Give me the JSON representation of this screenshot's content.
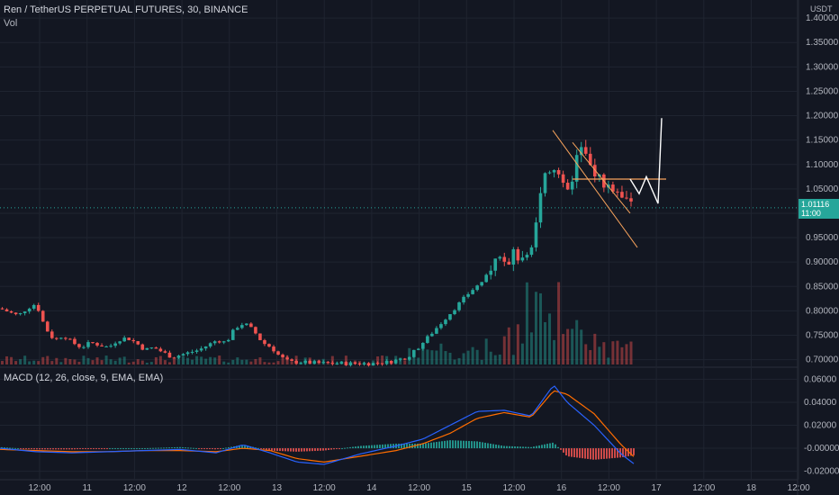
{
  "header": {
    "symbol_title": "Ren / TetherUS PERPETUAL FUTURES, 30, BINANCE",
    "volume_label": "Vol",
    "currency": "USDT"
  },
  "macd": {
    "label": "MACD (12, 26, close, 9, EMA, EMA)"
  },
  "last_price": {
    "value": "1.01116",
    "countdown": "11:00"
  },
  "colors": {
    "background": "#131722",
    "grid": "#1f2430",
    "up": "#26a69a",
    "down": "#ef5350",
    "macd_line": "#2962ff",
    "signal_line": "#ff6d00",
    "trendline": "#f7a35c",
    "projection": "#ffffff",
    "price_tag": "#26a69a"
  },
  "chart_data": [
    {
      "type": "candlestick",
      "title": "Ren / TetherUS PERPETUAL FUTURES, 30, BINANCE",
      "y_axis_ticks": [
        "1.40000",
        "1.35000",
        "1.30000",
        "1.25000",
        "1.20000",
        "1.15000",
        "1.10000",
        "1.05000",
        "1.00000",
        "0.95000",
        "0.90000",
        "0.85000",
        "0.80000",
        "0.75000",
        "0.70000"
      ],
      "ylim": [
        0.69,
        1.415
      ],
      "x_axis_ticks": [
        "12:00",
        "11",
        "12:00",
        "12",
        "12:00",
        "13",
        "12:00",
        "14",
        "12:00",
        "15",
        "12:00",
        "16",
        "12:00",
        "17",
        "12:00",
        "18",
        "12:00"
      ],
      "close_path": [
        {
          "t": 0,
          "v": 0.805
        },
        {
          "t": 2,
          "v": 0.79
        },
        {
          "t": 3,
          "v": 0.805
        },
        {
          "t": 4,
          "v": 0.815
        },
        {
          "t": 5,
          "v": 0.765
        },
        {
          "t": 6,
          "v": 0.74
        },
        {
          "t": 7,
          "v": 0.75
        },
        {
          "t": 8,
          "v": 0.735
        },
        {
          "t": 9,
          "v": 0.725
        },
        {
          "t": 10,
          "v": 0.735
        },
        {
          "t": 11,
          "v": 0.73
        },
        {
          "t": 12,
          "v": 0.725
        },
        {
          "t": 13,
          "v": 0.74
        },
        {
          "t": 14,
          "v": 0.745
        },
        {
          "t": 15,
          "v": 0.735
        },
        {
          "t": 16,
          "v": 0.72
        },
        {
          "t": 17,
          "v": 0.725
        },
        {
          "t": 18,
          "v": 0.715
        },
        {
          "t": 19,
          "v": 0.705
        },
        {
          "t": 20,
          "v": 0.71
        },
        {
          "t": 21,
          "v": 0.715
        },
        {
          "t": 22,
          "v": 0.72
        },
        {
          "t": 23,
          "v": 0.73
        },
        {
          "t": 24,
          "v": 0.74
        },
        {
          "t": 25,
          "v": 0.735
        },
        {
          "t": 26,
          "v": 0.765
        },
        {
          "t": 27,
          "v": 0.775
        },
        {
          "t": 28,
          "v": 0.76
        },
        {
          "t": 29,
          "v": 0.735
        },
        {
          "t": 30,
          "v": 0.725
        },
        {
          "t": 31,
          "v": 0.705
        },
        {
          "t": 32,
          "v": 0.695
        },
        {
          "t": 33,
          "v": 0.695
        },
        {
          "t": 35,
          "v": 0.693
        },
        {
          "t": 38,
          "v": 0.692
        },
        {
          "t": 41,
          "v": 0.692
        },
        {
          "t": 43,
          "v": 0.695
        },
        {
          "t": 44,
          "v": 0.7
        },
        {
          "t": 45,
          "v": 0.705
        },
        {
          "t": 46,
          "v": 0.72
        },
        {
          "t": 47,
          "v": 0.74
        },
        {
          "t": 48,
          "v": 0.76
        },
        {
          "t": 49,
          "v": 0.78
        },
        {
          "t": 50,
          "v": 0.8
        },
        {
          "t": 51,
          "v": 0.82
        },
        {
          "t": 52,
          "v": 0.84
        },
        {
          "t": 53,
          "v": 0.855
        },
        {
          "t": 54,
          "v": 0.875
        },
        {
          "t": 55,
          "v": 0.93
        },
        {
          "t": 56,
          "v": 0.9
        },
        {
          "t": 57,
          "v": 0.92
        },
        {
          "t": 58,
          "v": 0.89
        },
        {
          "t": 59,
          "v": 0.96
        },
        {
          "t": 60,
          "v": 1.06
        },
        {
          "t": 61,
          "v": 1.1
        },
        {
          "t": 62,
          "v": 1.07
        },
        {
          "t": 63,
          "v": 1.05
        },
        {
          "t": 64,
          "v": 1.14
        },
        {
          "t": 65,
          "v": 1.1
        },
        {
          "t": 66,
          "v": 1.08
        },
        {
          "t": 67,
          "v": 1.06
        },
        {
          "t": 68,
          "v": 1.05
        },
        {
          "t": 69,
          "v": 1.04
        },
        {
          "t": 70,
          "v": 1.01
        }
      ],
      "price_levels": {
        "last": 1.01116,
        "current_range": [
          0.99,
          1.16
        ]
      },
      "volume_series": "small bars each period; large spikes near day 15-16",
      "annotations": [
        {
          "type": "descending channel",
          "lines": [
            "from ~1.17 at the 16 ~04:00 area down to ~0.93",
            "parallel lower line"
          ]
        },
        {
          "type": "horizontal level",
          "value": 1.07
        },
        {
          "type": "projection path",
          "points": [
            1.07,
            1.04,
            1.075,
            1.02,
            1.195
          ]
        }
      ]
    },
    {
      "type": "line",
      "title": "MACD (12, 26, close, 9, EMA, EMA)",
      "y_axis_ticks": [
        "0.06000",
        "0.04000",
        "0.02000",
        "-0.00000",
        "-0.02000"
      ],
      "ylim": [
        -0.025,
        0.065
      ],
      "series": [
        {
          "name": "MACD",
          "values_desc": "near 0 until day 14, rises to ~0.035 at 15, ~0.058 peak at 16, falls to ~-0.015"
        },
        {
          "name": "Signal",
          "values_desc": "lagging MACD, peaks ~0.053"
        }
      ]
    }
  ]
}
